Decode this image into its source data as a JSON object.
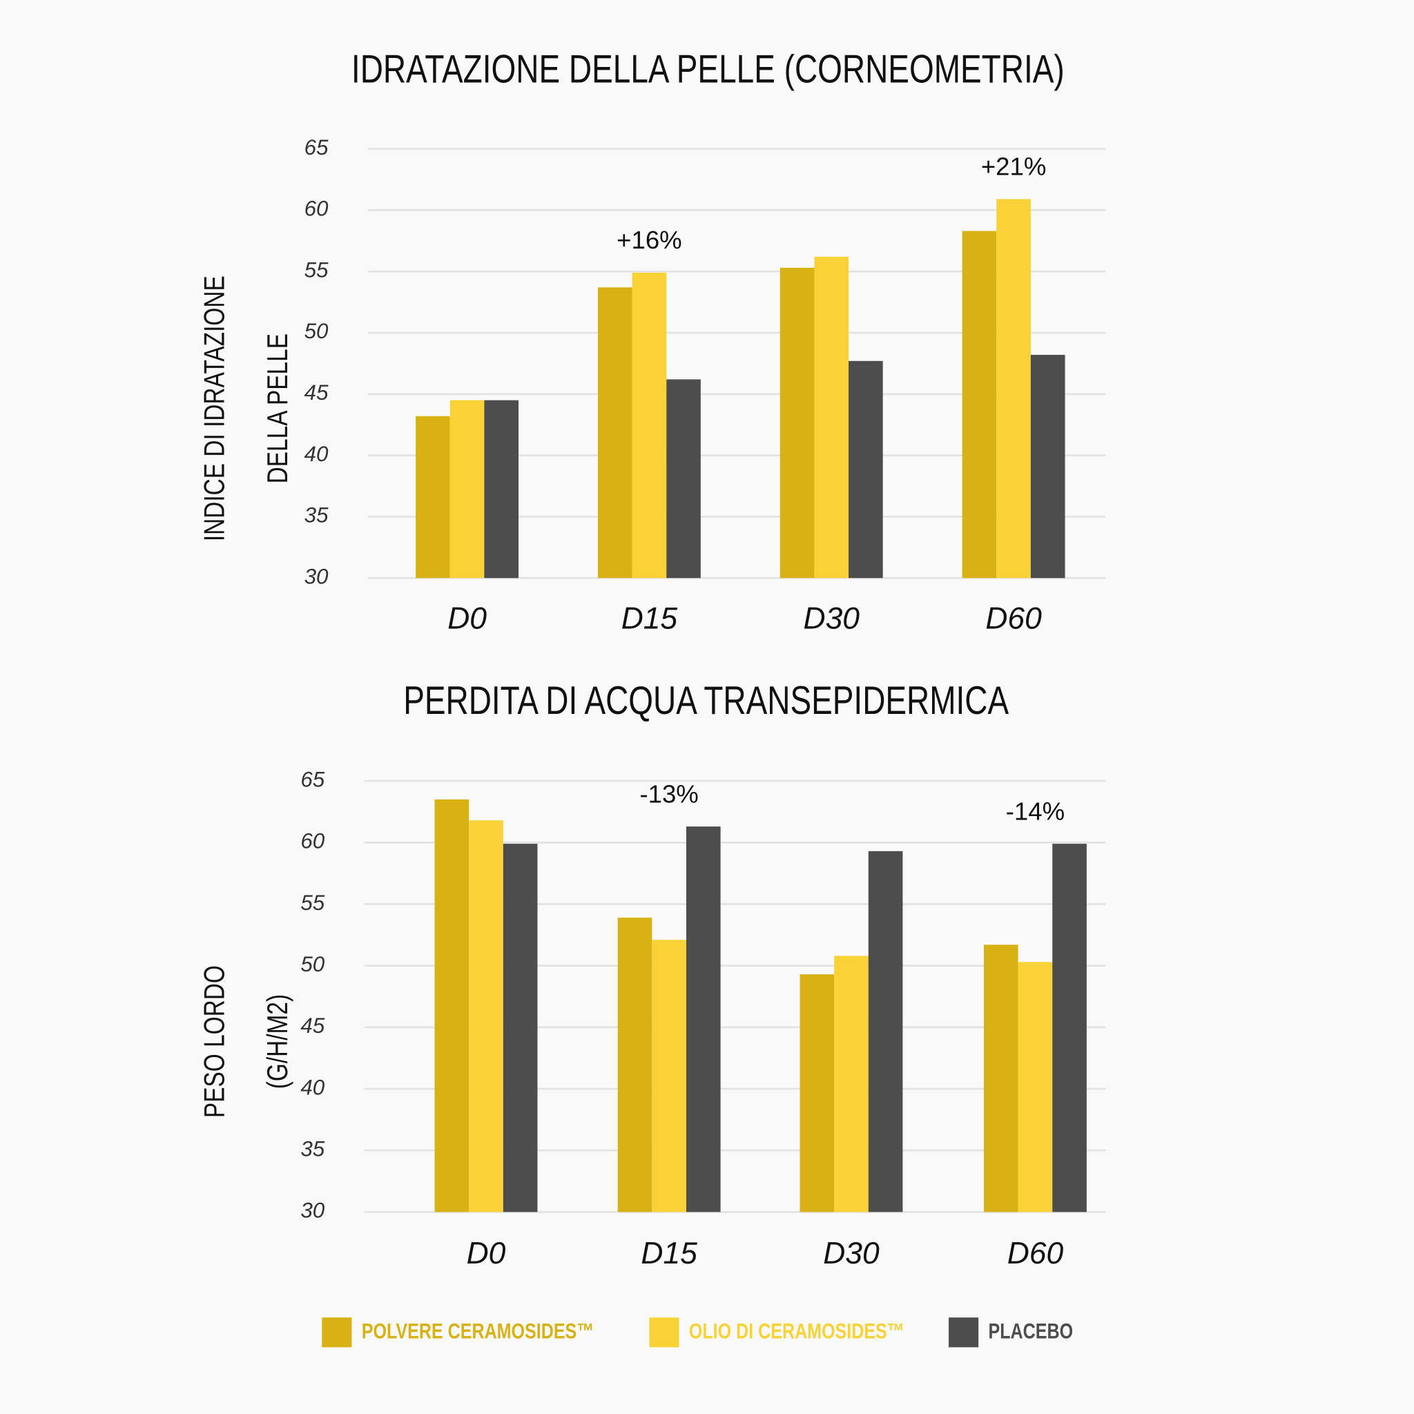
{
  "chart_data": [
    {
      "type": "bar",
      "title": "IDRATAZIONE DELLA PELLE (CORNEOMETRIA)",
      "ylabel": [
        "INDICE DI IDRATAZIONE",
        "DELLA PELLE"
      ],
      "categories": [
        "D0",
        "D15",
        "D30",
        "D60"
      ],
      "series": [
        {
          "name": "POLVERE CERAMOSIDES™",
          "color": "#d8b215",
          "values": [
            43.2,
            53.7,
            55.3,
            58.3
          ]
        },
        {
          "name": "OLIO DI CERAMOSIDES™",
          "color": "#f8d237",
          "values": [
            44.5,
            54.9,
            56.2,
            60.9
          ]
        },
        {
          "name": "PLACEBO",
          "color": "#4d4d4d",
          "values": [
            44.5,
            46.2,
            47.7,
            48.2
          ]
        }
      ],
      "annotations": [
        {
          "text": "+16%",
          "x": "D15"
        },
        {
          "text": "+21%",
          "x": "D60"
        }
      ],
      "ylim": [
        30,
        65
      ],
      "yticks": [
        30,
        35,
        40,
        45,
        50,
        55,
        60,
        65
      ],
      "grid": true
    },
    {
      "type": "bar",
      "title": "PERDITA DI ACQUA TRANSEPIDERMICA",
      "ylabel": [
        "PESO LORDO",
        "(G/H/M2)"
      ],
      "categories": [
        "D0",
        "D15",
        "D30",
        "D60"
      ],
      "series": [
        {
          "name": "POLVERE CERAMOSIDES™",
          "color": "#d8b215",
          "values": [
            63.5,
            53.9,
            49.3,
            51.7
          ]
        },
        {
          "name": "OLIO DI CERAMOSIDES™",
          "color": "#f8d237",
          "values": [
            61.8,
            52.1,
            50.8,
            50.3
          ]
        },
        {
          "name": "PLACEBO",
          "color": "#4d4d4d",
          "values": [
            59.9,
            61.3,
            59.3,
            59.9
          ]
        }
      ],
      "annotations": [
        {
          "text": "-13%",
          "x": "D15"
        },
        {
          "text": "-14%",
          "x": "D60"
        }
      ],
      "ylim": [
        30,
        65
      ],
      "yticks": [
        30,
        35,
        40,
        45,
        50,
        55,
        60,
        65
      ],
      "grid": true
    }
  ]
}
